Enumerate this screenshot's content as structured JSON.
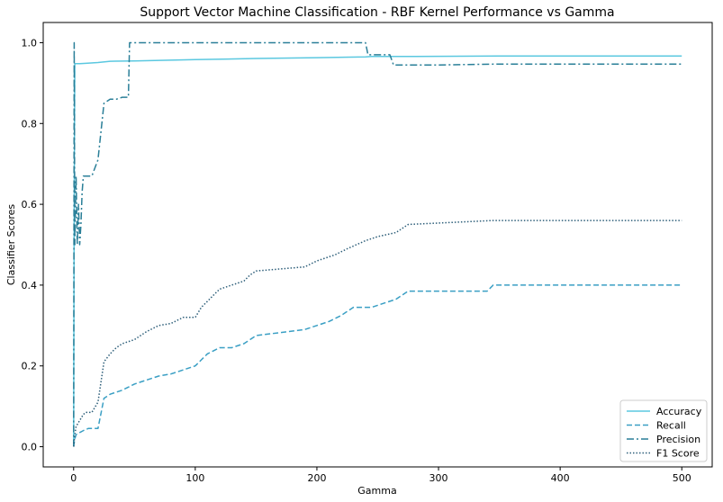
{
  "chart_data": {
    "type": "line",
    "title": "Support Vector Machine Classification - RBF Kernel Performance vs Gamma",
    "xlabel": "Gamma",
    "ylabel": "Classifier Scores",
    "xlim": [
      -25,
      525
    ],
    "ylim": [
      -0.05,
      1.05
    ],
    "xticks": [
      0,
      100,
      200,
      300,
      400,
      500
    ],
    "xtick_labels": [
      "0",
      "100",
      "200",
      "300",
      "400",
      "500"
    ],
    "yticks": [
      0.0,
      0.2,
      0.4,
      0.6,
      0.8,
      1.0
    ],
    "ytick_labels": [
      "0.0",
      "0.2",
      "0.4",
      "0.6",
      "0.8",
      "1.0"
    ],
    "grid": false,
    "legend_position": "lower-right",
    "series": [
      {
        "name": "Accuracy",
        "color": "#5bc8e0",
        "style": "solid",
        "x": [
          0,
          0.5,
          1,
          5,
          10,
          20,
          30,
          50,
          100,
          150,
          200,
          240,
          245,
          280,
          350,
          500
        ],
        "y": [
          0.01,
          0.6,
          0.948,
          0.948,
          0.949,
          0.951,
          0.954,
          0.955,
          0.958,
          0.961,
          0.963,
          0.965,
          0.966,
          0.966,
          0.967,
          0.967
        ]
      },
      {
        "name": "Recall",
        "color": "#3a9fc4",
        "style": "dashed",
        "x": [
          0,
          1,
          2,
          5,
          8,
          12,
          20,
          25,
          30,
          40,
          50,
          60,
          70,
          80,
          90,
          100,
          105,
          110,
          120,
          130,
          140,
          145,
          150,
          190,
          200,
          210,
          220,
          230,
          245,
          255,
          265,
          275,
          340,
          345,
          500
        ],
        "y": [
          0.0,
          0.02,
          0.03,
          0.035,
          0.04,
          0.045,
          0.045,
          0.12,
          0.13,
          0.14,
          0.155,
          0.165,
          0.175,
          0.18,
          0.19,
          0.2,
          0.215,
          0.23,
          0.245,
          0.245,
          0.255,
          0.265,
          0.275,
          0.29,
          0.3,
          0.31,
          0.325,
          0.345,
          0.345,
          0.355,
          0.365,
          0.385,
          0.385,
          0.4,
          0.4
        ]
      },
      {
        "name": "Precision",
        "color": "#2a7f98",
        "style": "dashdot",
        "x": [
          0,
          0.5,
          1,
          2,
          3,
          4,
          5,
          6,
          7,
          8,
          10,
          15,
          20,
          25,
          30,
          35,
          40,
          45,
          46,
          100,
          200,
          240,
          242,
          260,
          263,
          275,
          300,
          345,
          500
        ],
        "y": [
          0.0,
          1.0,
          0.5,
          0.67,
          0.5,
          0.6,
          0.5,
          0.55,
          0.63,
          0.67,
          0.67,
          0.67,
          0.71,
          0.85,
          0.86,
          0.86,
          0.865,
          0.865,
          1.0,
          1.0,
          1.0,
          1.0,
          0.97,
          0.97,
          0.945,
          0.945,
          0.945,
          0.947,
          0.947
        ]
      },
      {
        "name": "F1 Score",
        "color": "#2e5f7a",
        "style": "dotted",
        "x": [
          0,
          1,
          2,
          4,
          6,
          8,
          10,
          15,
          20,
          25,
          30,
          35,
          40,
          50,
          55,
          60,
          70,
          80,
          90,
          100,
          105,
          110,
          115,
          120,
          140,
          145,
          150,
          190,
          200,
          215,
          225,
          240,
          250,
          265,
          275,
          345,
          500
        ],
        "y": [
          0.0,
          0.03,
          0.05,
          0.06,
          0.07,
          0.08,
          0.085,
          0.085,
          0.11,
          0.21,
          0.23,
          0.245,
          0.255,
          0.265,
          0.275,
          0.285,
          0.3,
          0.305,
          0.32,
          0.32,
          0.345,
          0.36,
          0.375,
          0.39,
          0.41,
          0.425,
          0.435,
          0.445,
          0.46,
          0.475,
          0.49,
          0.51,
          0.52,
          0.53,
          0.55,
          0.56,
          0.56
        ]
      }
    ]
  }
}
